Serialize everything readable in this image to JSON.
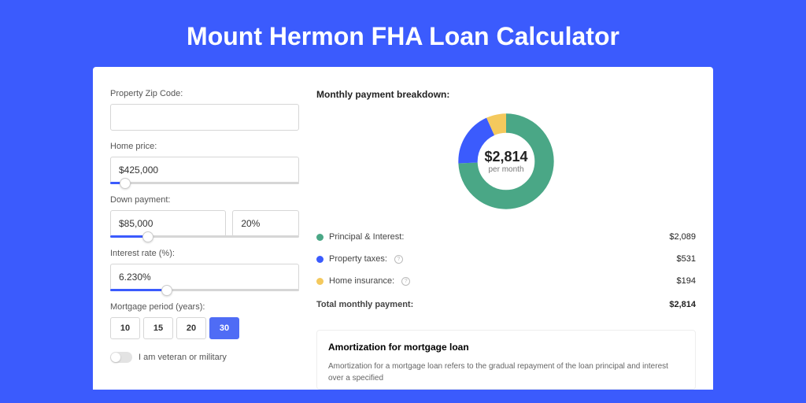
{
  "page": {
    "title": "Mount Hermon FHA Loan Calculator",
    "bg_color": "#3b5bfd",
    "card_bg": "#ffffff"
  },
  "form": {
    "zip": {
      "label": "Property Zip Code:",
      "value": ""
    },
    "home_price": {
      "label": "Home price:",
      "value": "$425,000",
      "slider_pct": 8
    },
    "down_payment": {
      "label": "Down payment:",
      "amount": "$85,000",
      "pct": "20%",
      "slider_pct": 20
    },
    "interest_rate": {
      "label": "Interest rate (%):",
      "value": "6.230%",
      "slider_pct": 30
    },
    "period": {
      "label": "Mortgage period (years):",
      "options": [
        "10",
        "15",
        "20",
        "30"
      ],
      "selected": "30"
    },
    "veteran": {
      "label": "I am veteran or military",
      "on": false
    }
  },
  "breakdown": {
    "heading": "Monthly payment breakdown:",
    "donut": {
      "amount": "$2,814",
      "sub": "per month",
      "ring_width": 15,
      "segments": [
        {
          "key": "pi",
          "color": "#4aa786",
          "pct": 74.2
        },
        {
          "key": "tax",
          "color": "#3b5bfd",
          "pct": 18.9
        },
        {
          "key": "ins",
          "color": "#f4c95d",
          "pct": 6.9
        }
      ]
    },
    "rows": [
      {
        "key": "pi",
        "dot": "#4aa786",
        "label": "Principal & Interest:",
        "info": false,
        "value": "$2,089"
      },
      {
        "key": "tax",
        "dot": "#3b5bfd",
        "label": "Property taxes:",
        "info": true,
        "value": "$531"
      },
      {
        "key": "ins",
        "dot": "#f4c95d",
        "label": "Home insurance:",
        "info": true,
        "value": "$194"
      }
    ],
    "total": {
      "label": "Total monthly payment:",
      "value": "$2,814"
    }
  },
  "amort": {
    "title": "Amortization for mortgage loan",
    "text": "Amortization for a mortgage loan refers to the gradual repayment of the loan principal and interest over a specified"
  }
}
